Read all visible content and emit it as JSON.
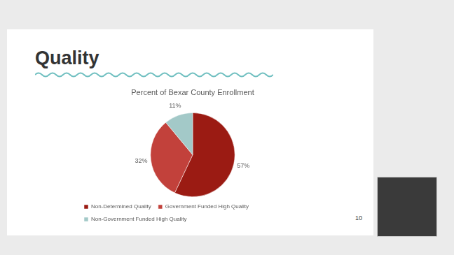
{
  "heading": "Quality",
  "page_number": 10,
  "chart_data": {
    "type": "pie",
    "title": "Percent of Bexar County Enrollment",
    "categories": [
      "Non-Determined Quality",
      "Government Funded High Quality",
      "Non-Government Funded High Quality"
    ],
    "values": [
      57,
      32,
      11
    ],
    "value_labels": [
      "57%",
      "32%",
      "11%"
    ],
    "colors": [
      "#9b1b13",
      "#c2413b",
      "#a3c9c8"
    ],
    "data_labels": true,
    "legend": "bottom"
  }
}
